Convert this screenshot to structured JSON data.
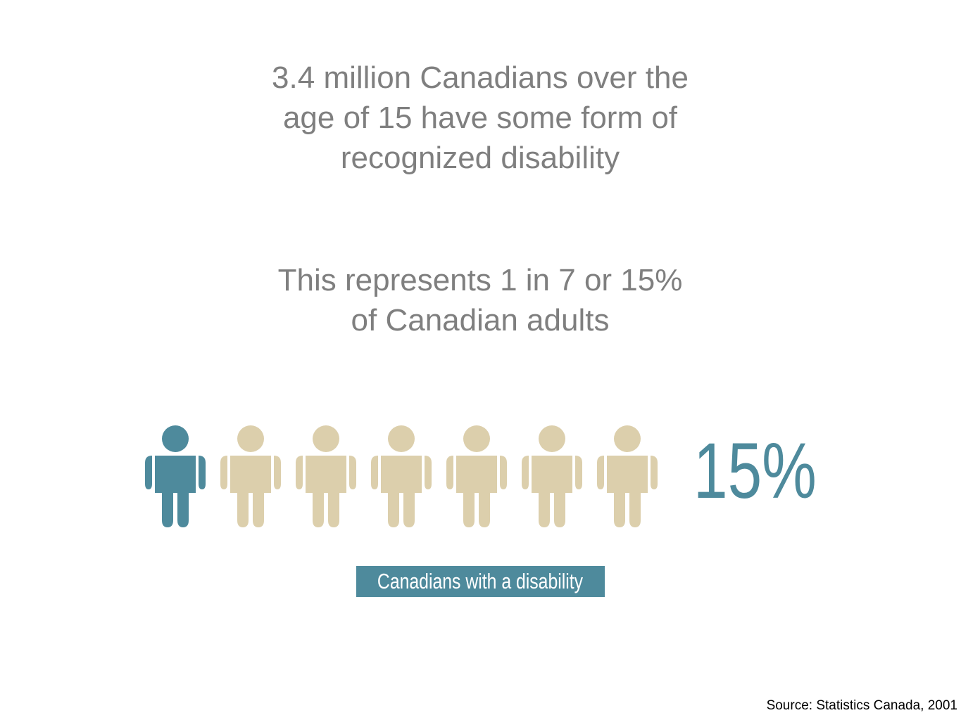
{
  "headline": {
    "lines": [
      "3.4 million Canadians over the",
      "age of 15 have some form of",
      "recognized disability"
    ]
  },
  "statement": {
    "lines": [
      "This represents 1 in 7 or 15%",
      "of Canadian adults"
    ]
  },
  "pictograph": {
    "percent_label": "15%",
    "caption": "Canadians with a disability"
  },
  "footer": {
    "source": "Source: Statistics Canada, 2001"
  }
}
